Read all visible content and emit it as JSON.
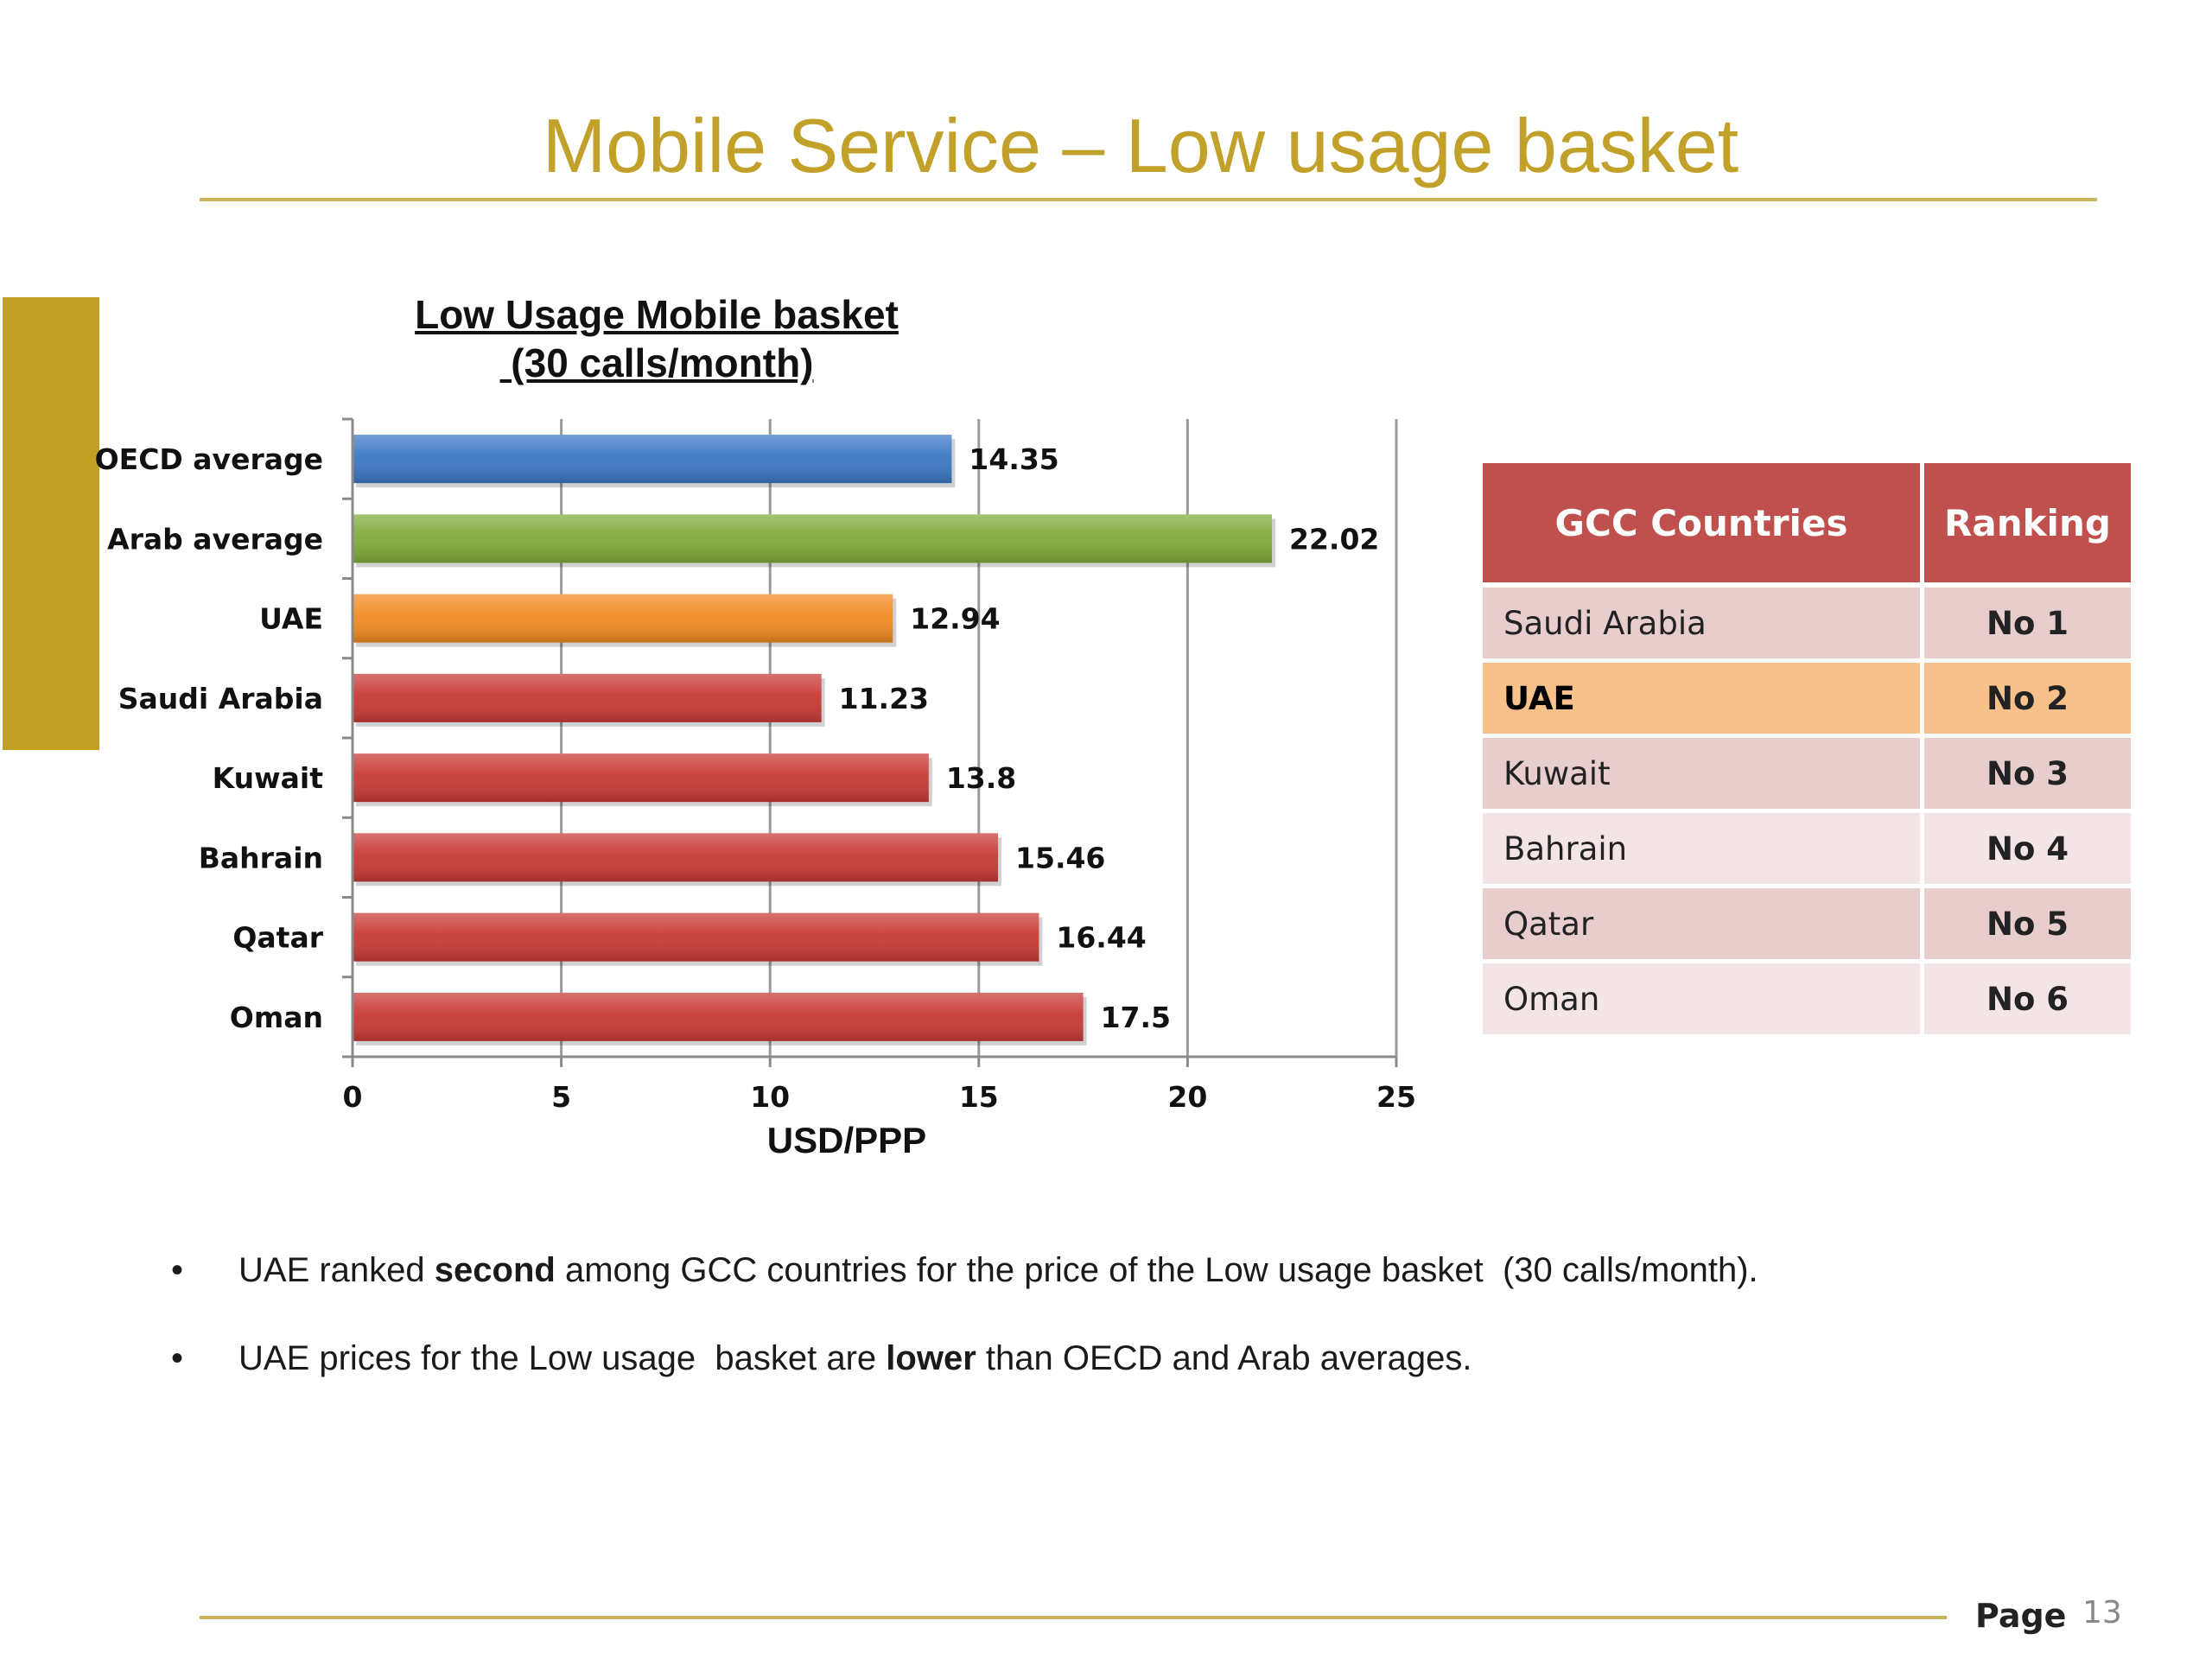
{
  "slide": {
    "title": "Mobile Service – Low usage basket",
    "bullets": [
      {
        "pre": "UAE ranked ",
        "bold": "second",
        "post": " among GCC countries for the price of the Low usage basket  (30 calls/month)."
      },
      {
        "pre": "UAE prices for the Low usage  basket are ",
        "bold": "lower",
        "post": " than OECD and Arab averages."
      }
    ],
    "bullet_char": "•",
    "page_label": "Page",
    "page_number": "13"
  },
  "chart_data": {
    "type": "bar",
    "orientation": "horizontal",
    "title_line1": "Low Usage Mobile basket",
    "title_line2": " (30 calls/month)",
    "categories": [
      "OECD average",
      "Arab average",
      "UAE",
      "Saudi Arabia",
      "Kuwait",
      "Bahrain",
      "Qatar",
      "Oman"
    ],
    "values": [
      14.35,
      22.02,
      12.94,
      11.23,
      13.8,
      15.46,
      16.44,
      17.5
    ],
    "value_labels": [
      "14.35",
      "22.02",
      "12.94",
      "11.23",
      "13.8",
      "15.46",
      "16.44",
      "17.5"
    ],
    "bar_colors": [
      "#3b78c4",
      "#7faa3a",
      "#f28a22",
      "#c83a36",
      "#c83a36",
      "#c83a36",
      "#c83a36",
      "#c83a36"
    ],
    "xlabel": "USD/PPP",
    "xlim": [
      0,
      25
    ],
    "xticks": [
      0,
      5,
      10,
      15,
      20,
      25
    ],
    "grid": "vertical gridlines"
  },
  "ranking_table": {
    "headers": [
      "GCC Countries",
      "Ranking"
    ],
    "rows": [
      {
        "country": "Saudi Arabia",
        "rank": "No 1"
      },
      {
        "country": "UAE",
        "rank": "No 2"
      },
      {
        "country": "Kuwait",
        "rank": "No 3"
      },
      {
        "country": "Bahrain",
        "rank": "No 4"
      },
      {
        "country": "Qatar",
        "rank": "No 5"
      },
      {
        "country": "Oman",
        "rank": "No 6"
      }
    ],
    "highlight_row": "UAE",
    "header_color": "#c0504d",
    "highlight_color": "#f8c08a"
  }
}
